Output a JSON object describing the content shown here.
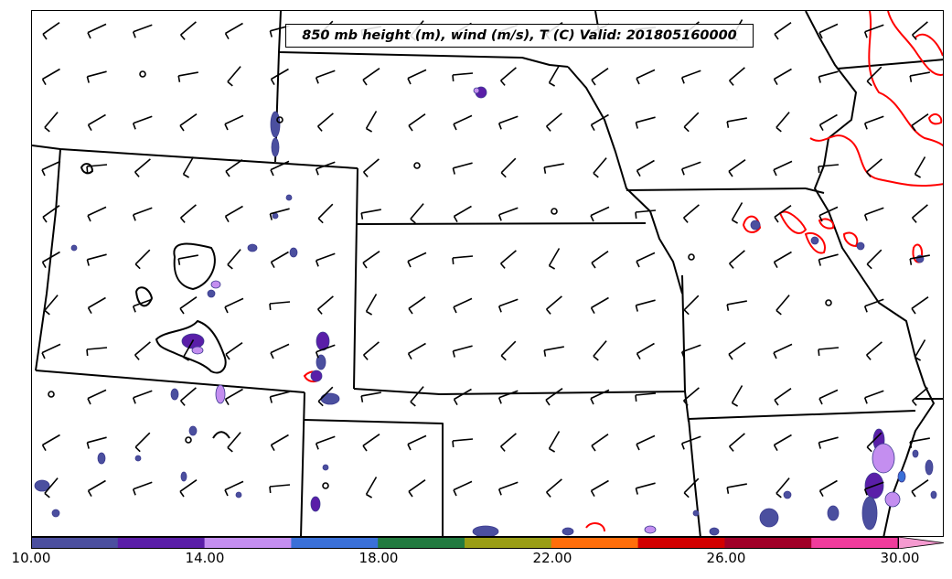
{
  "title": "850 mb height (m), wind (m/s), T (C) Valid: 201805160000",
  "colorbar": {
    "colors": [
      "#4b4f9f",
      "#5a1ea8",
      "#c48ef0",
      "#3a70d8",
      "#227a40",
      "#9a9d14",
      "#ff6e0a",
      "#d20000",
      "#a00028",
      "#f03c9c"
    ],
    "extend_color": "#f59ad0",
    "tick_labels": [
      "10.00",
      "14.00",
      "18.00",
      "22.00",
      "26.00",
      "30.00"
    ]
  },
  "legend_colors": {
    "state_lines": "#000000",
    "height_contours": "#000000",
    "temperature_contours": "#ff0000",
    "wind_barbs": "#000000"
  }
}
